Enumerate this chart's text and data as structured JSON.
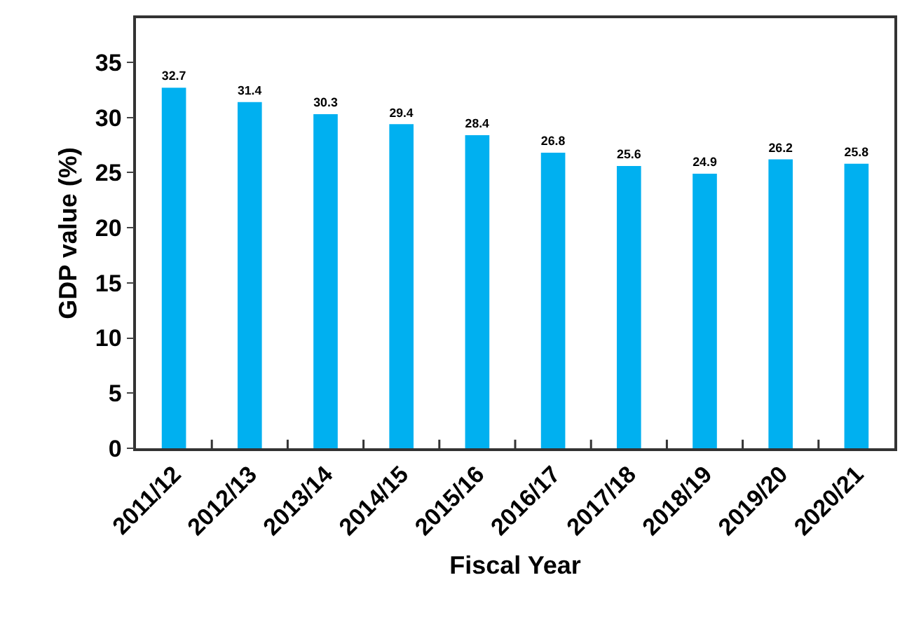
{
  "chart_data": {
    "type": "bar",
    "xlabel": "Fiscal Year",
    "ylabel": "GDP value (%)",
    "categories": [
      "2011/12",
      "2012/13",
      "2013/14",
      "2014/15",
      "2015/16",
      "2016/17",
      "2017/18",
      "2018/19",
      "2019/20",
      "2020/21"
    ],
    "values": [
      32.7,
      31.4,
      30.3,
      29.4,
      28.4,
      26.8,
      25.6,
      24.9,
      26.2,
      25.8
    ],
    "color": "#00b0f0",
    "ylim": [
      0,
      39
    ],
    "yticks": [
      0,
      5,
      10,
      15,
      20,
      25,
      30,
      35
    ],
    "grid": false,
    "legend": false,
    "data_labels": true
  }
}
